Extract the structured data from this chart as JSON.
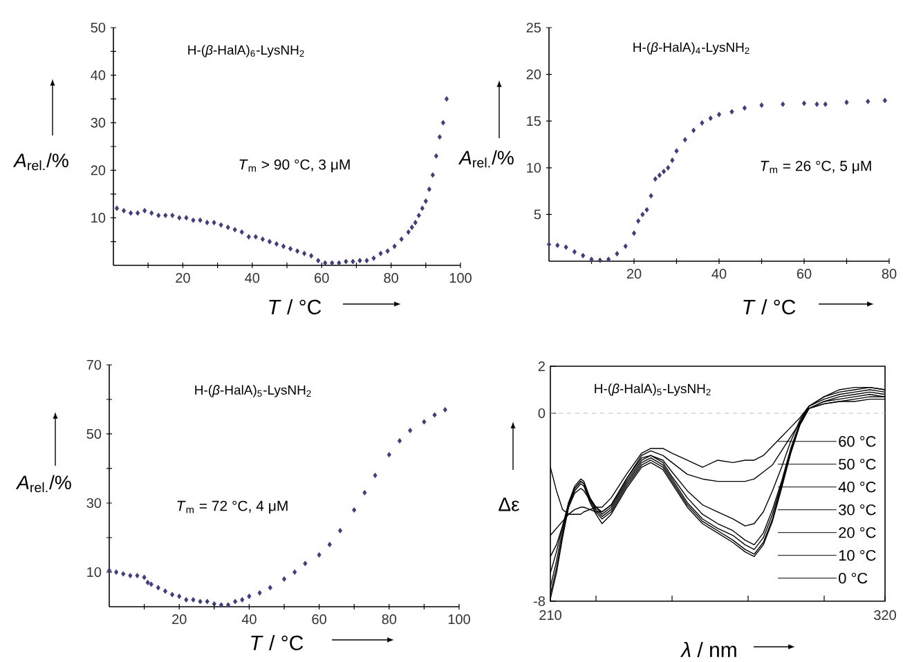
{
  "chart_data": [
    {
      "type": "scatter",
      "title": "H-(*β*-HalA)$_{6}$-LysNH$_{2}$",
      "xlabel": "*T* / °C",
      "ylabel": "*A*$_{rel.}$/%",
      "annotations": [
        "*T*$_{m}$ > 90 °C, 3 μM"
      ],
      "marker": "diamond",
      "xlim": [
        0,
        100
      ],
      "ylim": [
        0,
        50
      ],
      "xticks": [
        {
          "value": 10,
          "label": null
        },
        20,
        {
          "value": 30,
          "label": null
        },
        40,
        {
          "value": 50,
          "label": null
        },
        60,
        {
          "value": 70,
          "label": null
        },
        80,
        {
          "value": 90,
          "label": null
        },
        100
      ],
      "yticks": [
        {
          "value": 5,
          "label": null
        },
        10,
        {
          "value": 15,
          "label": null
        },
        20,
        {
          "value": 25,
          "label": null
        },
        30,
        {
          "value": 35,
          "label": null
        },
        40,
        {
          "value": 45,
          "label": null
        },
        50
      ],
      "series": [
        {
          "color": "#3d3d7a",
          "x": [
            1,
            3,
            5,
            7,
            9,
            11,
            13,
            15,
            17,
            19,
            21,
            23,
            25,
            27,
            29,
            31,
            33,
            35,
            37,
            39,
            41,
            43,
            45,
            47,
            49,
            51,
            53,
            55,
            57,
            59,
            61,
            63,
            65,
            67,
            69,
            71,
            73,
            75,
            77,
            79,
            81,
            83,
            85,
            86,
            87,
            88,
            89,
            90,
            91,
            92,
            93,
            94,
            95,
            96
          ],
          "values": [
            12,
            11.5,
            11,
            11,
            11.5,
            11,
            10.5,
            10.5,
            10.5,
            10,
            10,
            9.5,
            9.5,
            9,
            9,
            8.5,
            8,
            7.5,
            7,
            6,
            6,
            5.5,
            5,
            4.5,
            4,
            3.5,
            3,
            2.5,
            2,
            1,
            0.5,
            0.5,
            0.5,
            0.8,
            0.8,
            1,
            1,
            1.5,
            2.5,
            3,
            4,
            5.5,
            7,
            8,
            9,
            10.5,
            12,
            13.5,
            16,
            19,
            23,
            27,
            30,
            35
          ]
        }
      ]
    },
    {
      "type": "scatter",
      "title": "H-(*β*-HalA)$_{4}$-LysNH$_{2}$",
      "xlabel": "*T* / °C",
      "ylabel": "*A*$_{rel.}$/%",
      "annotations": [
        "*T*$_{m}$ = 26 °C, 5 μM"
      ],
      "marker": "diamond",
      "xlim": [
        0,
        80
      ],
      "ylim": [
        0,
        25
      ],
      "xticks": [
        {
          "value": 10,
          "label": null
        },
        20,
        {
          "value": 30,
          "label": null
        },
        40,
        {
          "value": 50,
          "label": null
        },
        60,
        {
          "value": 70,
          "label": null
        },
        80
      ],
      "yticks": [
        5,
        10,
        15,
        20,
        25
      ],
      "series": [
        {
          "color": "#3d3d7a",
          "x": [
            0,
            2,
            4,
            6,
            8,
            10,
            12,
            14,
            16,
            18,
            20,
            21,
            22,
            23,
            24,
            25,
            26,
            27,
            28,
            29,
            30,
            32,
            34,
            36,
            38,
            40,
            43,
            46,
            50,
            55,
            60,
            63,
            65,
            70,
            75,
            79
          ],
          "values": [
            1.8,
            1.7,
            1.5,
            1.0,
            0.6,
            0.2,
            0.1,
            0.2,
            0.8,
            1.6,
            3.0,
            4.3,
            5.0,
            5.5,
            7.0,
            8.8,
            9.2,
            9.6,
            10.0,
            10.8,
            11.8,
            13.0,
            14.0,
            14.8,
            15.3,
            15.7,
            16.0,
            16.4,
            16.7,
            16.8,
            16.9,
            16.8,
            16.8,
            17.0,
            17.1,
            17.2
          ]
        }
      ]
    },
    {
      "type": "scatter",
      "title": "H-(*β*-HalA)$_{5}$-LysNH$_{2}$",
      "xlabel": "*T* / °C",
      "ylabel": "*A*$_{rel.}$/%",
      "annotations": [
        "*T*$_{m}$ = 72 °C, 4 μM"
      ],
      "marker": "diamond",
      "xlim": [
        0,
        100
      ],
      "ylim": [
        0,
        70
      ],
      "xticks": [
        {
          "value": 10,
          "label": null
        },
        20,
        {
          "value": 30,
          "label": null
        },
        40,
        {
          "value": 50,
          "label": null
        },
        60,
        {
          "value": 70,
          "label": null
        },
        80,
        {
          "value": 90,
          "label": null
        },
        100
      ],
      "yticks": [
        10,
        {
          "value": 20,
          "label": null
        },
        30,
        {
          "value": 40,
          "label": null
        },
        50,
        {
          "value": 60,
          "label": null
        },
        70
      ],
      "series": [
        {
          "color": "#3d3d7a",
          "x": [
            0,
            2,
            4,
            6,
            8,
            10,
            11,
            12,
            14,
            16,
            18,
            20,
            22,
            24,
            26,
            28,
            30,
            32,
            34,
            36,
            38,
            40,
            43,
            46,
            50,
            53,
            56,
            60,
            63,
            66,
            70,
            73,
            76,
            80,
            83,
            86,
            90,
            93,
            96
          ],
          "values": [
            10.5,
            10,
            9.5,
            9,
            9,
            8.5,
            7,
            6.5,
            5.5,
            4.5,
            3.5,
            3,
            2,
            2,
            1.5,
            1.5,
            0.8,
            0.5,
            0.5,
            1.5,
            2,
            3,
            4,
            5.5,
            8,
            10,
            12.5,
            15,
            18,
            22,
            28,
            33,
            38,
            44,
            48,
            51,
            53.5,
            55.5,
            57
          ]
        }
      ]
    },
    {
      "type": "line",
      "title": "H-(*β*-HalA)$_{5}$-LysNH$_{2}$",
      "xlabel": "*λ* / nm",
      "ylabel": "Δε",
      "legend": "right",
      "xlim": [
        210,
        320
      ],
      "ylim": [
        -8,
        2
      ],
      "xticks": [
        210,
        {
          "value": 225,
          "label": null
        },
        {
          "value": 250,
          "label": null
        },
        {
          "value": 275,
          "label": null
        },
        {
          "value": 300,
          "label": null
        },
        320
      ],
      "yticks": [
        -8,
        0,
        2
      ],
      "ref_lines": [
        {
          "axis": "y",
          "value": 0,
          "color": "#bbbbbb",
          "line_style": "dashed"
        }
      ],
      "x": [
        210,
        212,
        214,
        216,
        218,
        220,
        221,
        223,
        225,
        227,
        230,
        235,
        240,
        243,
        247,
        250,
        255,
        260,
        265,
        270,
        274,
        277,
        280,
        283,
        286,
        289,
        292,
        295,
        300,
        305,
        310,
        315,
        320
      ],
      "series": [
        {
          "name": "60 °C",
          "color": "#000000",
          "values": [
            -2.3,
            -3.3,
            -4.1,
            -4.3,
            -4.3,
            -4.3,
            -4.2,
            -4.1,
            -4.0,
            -4.0,
            -3.6,
            -2.6,
            -1.7,
            -1.5,
            -1.5,
            -1.7,
            -2.0,
            -2.3,
            -2.0,
            -2.1,
            -2.0,
            -2.0,
            -1.8,
            -1.4,
            -1.0,
            -0.6,
            -0.2,
            0.3,
            0.7,
            1.0,
            1.1,
            1.1,
            1.0
          ]
        },
        {
          "name": "50 °C",
          "color": "#000000",
          "values": [
            -5.2,
            -4.9,
            -4.6,
            -4.3,
            -4.1,
            -4.0,
            -4.0,
            -4.1,
            -4.2,
            -4.2,
            -3.9,
            -2.8,
            -1.8,
            -1.6,
            -1.8,
            -2.1,
            -2.6,
            -2.8,
            -2.9,
            -2.9,
            -2.9,
            -2.8,
            -2.5,
            -2.2,
            -1.6,
            -1.0,
            -0.4,
            0.3,
            0.7,
            0.9,
            1.0,
            1.1,
            1.0
          ]
        },
        {
          "name": "40 °C",
          "color": "#000000",
          "values": [
            -6.1,
            -5.6,
            -4.8,
            -4.0,
            -3.4,
            -3.2,
            -3.3,
            -3.7,
            -4.0,
            -4.2,
            -3.9,
            -2.8,
            -1.9,
            -1.8,
            -2.0,
            -2.5,
            -3.3,
            -3.9,
            -4.2,
            -4.5,
            -4.8,
            -4.7,
            -4.2,
            -3.3,
            -2.3,
            -1.2,
            -0.3,
            0.3,
            0.6,
            0.8,
            0.9,
            1.0,
            0.9
          ]
        },
        {
          "name": "30 °C",
          "color": "#000000",
          "values": [
            -6.8,
            -5.9,
            -4.8,
            -3.8,
            -3.2,
            -2.9,
            -3.0,
            -3.6,
            -4.0,
            -4.3,
            -4.0,
            -2.9,
            -2.0,
            -1.8,
            -2.1,
            -2.7,
            -3.6,
            -4.3,
            -4.7,
            -5.0,
            -5.4,
            -5.6,
            -5.1,
            -4.1,
            -2.9,
            -1.5,
            -0.4,
            0.2,
            0.5,
            0.7,
            0.8,
            0.9,
            0.8
          ]
        },
        {
          "name": "20 °C",
          "color": "#000000",
          "values": [
            -7.4,
            -6.3,
            -5.0,
            -3.8,
            -3.1,
            -2.8,
            -2.9,
            -3.6,
            -4.1,
            -4.4,
            -4.1,
            -3.0,
            -2.1,
            -1.9,
            -2.2,
            -2.8,
            -3.8,
            -4.5,
            -4.9,
            -5.2,
            -5.6,
            -5.8,
            -5.3,
            -4.3,
            -3.0,
            -1.6,
            -0.5,
            0.2,
            0.5,
            0.6,
            0.7,
            0.8,
            0.7
          ]
        },
        {
          "name": "10 °C",
          "color": "#000000",
          "values": [
            -7.7,
            -6.6,
            -5.2,
            -3.9,
            -3.2,
            -2.9,
            -3.0,
            -3.7,
            -4.2,
            -4.5,
            -4.2,
            -3.1,
            -2.2,
            -2.0,
            -2.3,
            -2.9,
            -3.9,
            -4.6,
            -5.0,
            -5.4,
            -5.8,
            -6.0,
            -5.5,
            -4.5,
            -3.1,
            -1.7,
            -0.5,
            0.2,
            0.4,
            0.5,
            0.6,
            0.7,
            0.7
          ]
        },
        {
          "name": "0 °C",
          "color": "#000000",
          "values": [
            -7.9,
            -6.8,
            -5.3,
            -4.0,
            -3.3,
            -3.0,
            -3.1,
            -3.8,
            -4.3,
            -4.7,
            -4.3,
            -3.2,
            -2.3,
            -2.1,
            -2.4,
            -3.0,
            -4.0,
            -4.7,
            -5.1,
            -5.5,
            -5.9,
            -6.1,
            -5.6,
            -4.6,
            -3.2,
            -1.7,
            -0.5,
            0.2,
            0.4,
            0.5,
            0.5,
            0.6,
            0.6
          ]
        }
      ]
    }
  ]
}
